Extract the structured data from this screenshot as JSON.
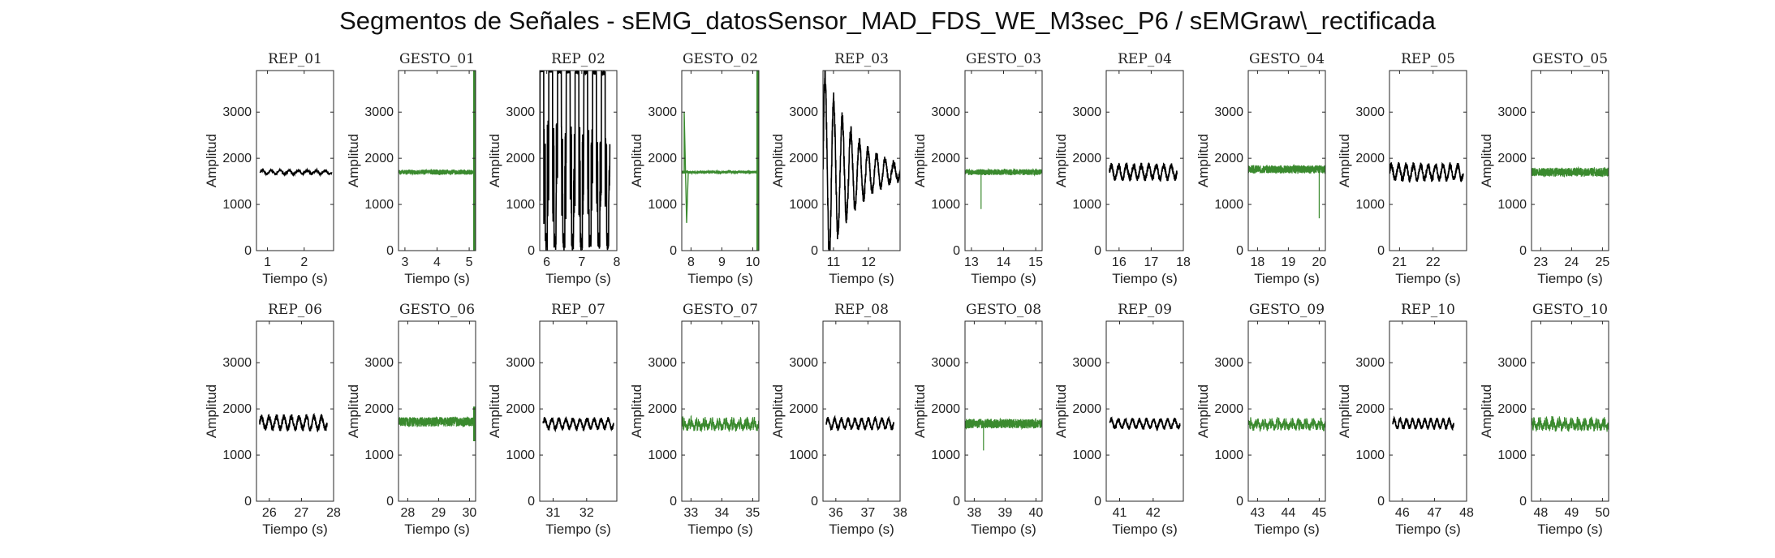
{
  "figure": {
    "title": "Segmentos de Señales - sEMG_datosSensor_MAD_FDS_WE_M3sec_P6 / sEMGraw\\_rectificada"
  },
  "colors": {
    "rep": "#000000",
    "gesto": "#3a8a2e",
    "axes": "#262626"
  },
  "chart_data": [
    {
      "type": "line",
      "title": "REP_01",
      "xlabel": "Tiempo (s)",
      "ylabel": "Amplitud",
      "xlim": [
        0.7,
        2.8
      ],
      "ylim": [
        0,
        3900
      ],
      "xticks": [
        1,
        2
      ],
      "yticks": [
        0,
        1000,
        2000,
        3000
      ],
      "series": [
        {
          "name": "REP_01",
          "color": "#000000",
          "x_range": [
            0.8,
            2.75
          ],
          "baseline": 1700,
          "amplitude": 40,
          "pattern": "oscillation",
          "cycles": 8
        }
      ]
    },
    {
      "type": "line",
      "title": "GESTO_01",
      "xlabel": "Tiempo (s)",
      "ylabel": "Amplitud",
      "xlim": [
        2.8,
        5.2
      ],
      "ylim": [
        0,
        3900
      ],
      "xticks": [
        3,
        4,
        5
      ],
      "yticks": [
        0,
        1000,
        2000,
        3000
      ],
      "series": [
        {
          "name": "GESTO_01",
          "color": "#3a8a2e",
          "x_range": [
            2.8,
            5.2
          ],
          "baseline": 1700,
          "amplitude": 70,
          "pattern": "noise",
          "end_burst": [
            0,
            3900
          ]
        }
      ]
    },
    {
      "type": "line",
      "title": "REP_02",
      "xlabel": "Tiempo (s)",
      "ylabel": "Amplitud",
      "xlim": [
        5.8,
        8.0
      ],
      "ylim": [
        0,
        3900
      ],
      "xticks": [
        6,
        7,
        8
      ],
      "yticks": [
        0,
        1000,
        2000,
        3000
      ],
      "series": [
        {
          "name": "REP_02",
          "color": "#000000",
          "x_range": [
            5.8,
            7.8
          ],
          "baseline": 1700,
          "pattern": "saturated_bursts",
          "cycles": 8,
          "max": 3900,
          "min": 0
        }
      ]
    },
    {
      "type": "line",
      "title": "GESTO_02",
      "xlabel": "Tiempo (s)",
      "ylabel": "Amplitud",
      "xlim": [
        7.7,
        10.2
      ],
      "ylim": [
        0,
        3900
      ],
      "xticks": [
        8,
        9,
        10
      ],
      "yticks": [
        0,
        1000,
        2000,
        3000
      ],
      "series": [
        {
          "name": "GESTO_02",
          "color": "#3a8a2e",
          "x_range": [
            7.7,
            10.2
          ],
          "baseline": 1700,
          "amplitude": 40,
          "pattern": "noise",
          "start_burst": [
            600,
            3000
          ],
          "end_burst": [
            0,
            3900
          ]
        }
      ]
    },
    {
      "type": "line",
      "title": "REP_03",
      "xlabel": "Tiempo (s)",
      "ylabel": "Amplitud",
      "xlim": [
        10.7,
        12.9
      ],
      "ylim": [
        0,
        3900
      ],
      "xticks": [
        11,
        12
      ],
      "yticks": [
        0,
        1000,
        2000,
        3000
      ],
      "series": [
        {
          "name": "REP_03",
          "color": "#000000",
          "x_range": [
            10.7,
            12.9
          ],
          "baseline": 1700,
          "pattern": "decaying_bursts",
          "cycles": 9,
          "max": 3900,
          "min": 0
        }
      ]
    },
    {
      "type": "line",
      "title": "GESTO_03",
      "xlabel": "Tiempo (s)",
      "ylabel": "Amplitud",
      "xlim": [
        12.8,
        15.2
      ],
      "ylim": [
        0,
        3900
      ],
      "xticks": [
        13,
        14,
        15
      ],
      "yticks": [
        0,
        1000,
        2000,
        3000
      ],
      "series": [
        {
          "name": "GESTO_03",
          "color": "#3a8a2e",
          "x_range": [
            12.8,
            15.2
          ],
          "baseline": 1700,
          "amplitude": 80,
          "pattern": "noise",
          "spike": [
            13.3,
            900
          ]
        }
      ]
    },
    {
      "type": "line",
      "title": "REP_04",
      "xlabel": "Tiempo (s)",
      "ylabel": "Amplitud",
      "xlim": [
        15.6,
        18.0
      ],
      "ylim": [
        0,
        3900
      ],
      "xticks": [
        16,
        17,
        18
      ],
      "yticks": [
        0,
        1000,
        2000,
        3000
      ],
      "series": [
        {
          "name": "REP_04",
          "color": "#000000",
          "x_range": [
            15.7,
            17.8
          ],
          "baseline": 1700,
          "amplitude": 140,
          "pattern": "oscillation",
          "cycles": 9
        }
      ]
    },
    {
      "type": "line",
      "title": "GESTO_04",
      "xlabel": "Tiempo (s)",
      "ylabel": "Amplitud",
      "xlim": [
        17.7,
        20.2
      ],
      "ylim": [
        0,
        3900
      ],
      "xticks": [
        18,
        19,
        20
      ],
      "yticks": [
        0,
        1000,
        2000,
        3000
      ],
      "series": [
        {
          "name": "GESTO_04",
          "color": "#3a8a2e",
          "x_range": [
            17.7,
            20.2
          ],
          "baseline": 1760,
          "amplitude": 110,
          "pattern": "noise",
          "spike": [
            20.0,
            700
          ]
        }
      ]
    },
    {
      "type": "line",
      "title": "REP_05",
      "xlabel": "Tiempo (s)",
      "ylabel": "Amplitud",
      "xlim": [
        20.7,
        23.0
      ],
      "ylim": [
        0,
        3900
      ],
      "xticks": [
        21,
        22
      ],
      "yticks": [
        0,
        1000,
        2000,
        3000
      ],
      "series": [
        {
          "name": "REP_05",
          "color": "#000000",
          "x_range": [
            20.7,
            22.9
          ],
          "baseline": 1700,
          "amplitude": 150,
          "pattern": "oscillation",
          "cycles": 10
        }
      ]
    },
    {
      "type": "line",
      "title": "GESTO_05",
      "xlabel": "Tiempo (s)",
      "ylabel": "Amplitud",
      "xlim": [
        22.7,
        25.2
      ],
      "ylim": [
        0,
        3900
      ],
      "xticks": [
        23,
        24,
        25
      ],
      "yticks": [
        0,
        1000,
        2000,
        3000
      ],
      "series": [
        {
          "name": "GESTO_05",
          "color": "#3a8a2e",
          "x_range": [
            22.7,
            25.2
          ],
          "baseline": 1700,
          "amplitude": 120,
          "pattern": "noise"
        }
      ]
    },
    {
      "type": "line",
      "title": "REP_06",
      "xlabel": "Tiempo (s)",
      "ylabel": "Amplitud",
      "xlim": [
        25.6,
        28.0
      ],
      "ylim": [
        0,
        3900
      ],
      "xticks": [
        26,
        27,
        28
      ],
      "yticks": [
        0,
        1000,
        2000,
        3000
      ],
      "series": [
        {
          "name": "REP_06",
          "color": "#000000",
          "x_range": [
            25.7,
            27.8
          ],
          "baseline": 1700,
          "amplitude": 130,
          "pattern": "oscillation",
          "cycles": 9
        }
      ]
    },
    {
      "type": "line",
      "title": "GESTO_06",
      "xlabel": "Tiempo (s)",
      "ylabel": "Amplitud",
      "xlim": [
        27.7,
        30.2
      ],
      "ylim": [
        0,
        3900
      ],
      "xticks": [
        28,
        29,
        30
      ],
      "yticks": [
        0,
        1000,
        2000,
        3000
      ],
      "series": [
        {
          "name": "GESTO_06",
          "color": "#3a8a2e",
          "x_range": [
            27.7,
            30.2
          ],
          "baseline": 1720,
          "amplitude": 130,
          "pattern": "noise",
          "end_burst": [
            1300,
            2050
          ]
        }
      ]
    },
    {
      "type": "line",
      "title": "REP_07",
      "xlabel": "Tiempo (s)",
      "ylabel": "Amplitud",
      "xlim": [
        30.6,
        32.9
      ],
      "ylim": [
        0,
        3900
      ],
      "xticks": [
        31,
        32
      ],
      "yticks": [
        0,
        1000,
        2000,
        3000
      ],
      "series": [
        {
          "name": "REP_07",
          "color": "#000000",
          "x_range": [
            30.7,
            32.8
          ],
          "baseline": 1680,
          "amplitude": 100,
          "pattern": "oscillation",
          "cycles": 10
        }
      ]
    },
    {
      "type": "line",
      "title": "GESTO_07",
      "xlabel": "Tiempo (s)",
      "ylabel": "Amplitud",
      "xlim": [
        32.7,
        35.2
      ],
      "ylim": [
        0,
        3900
      ],
      "xticks": [
        33,
        34,
        35
      ],
      "yticks": [
        0,
        1000,
        2000,
        3000
      ],
      "series": [
        {
          "name": "GESTO_07",
          "color": "#3a8a2e",
          "x_range": [
            32.7,
            35.2
          ],
          "baseline": 1680,
          "amplitude": 130,
          "pattern": "noisy_oscillation",
          "cycles": 11
        }
      ]
    },
    {
      "type": "line",
      "title": "REP_08",
      "xlabel": "Tiempo (s)",
      "ylabel": "Amplitud",
      "xlim": [
        35.6,
        38.0
      ],
      "ylim": [
        0,
        3900
      ],
      "xticks": [
        36,
        37,
        38
      ],
      "yticks": [
        0,
        1000,
        2000,
        3000
      ],
      "series": [
        {
          "name": "REP_08",
          "color": "#000000",
          "x_range": [
            35.7,
            37.8
          ],
          "baseline": 1680,
          "amplitude": 100,
          "pattern": "oscillation",
          "cycles": 10
        }
      ]
    },
    {
      "type": "line",
      "title": "GESTO_08",
      "xlabel": "Tiempo (s)",
      "ylabel": "Amplitud",
      "xlim": [
        37.7,
        40.2
      ],
      "ylim": [
        0,
        3900
      ],
      "xticks": [
        38,
        39,
        40
      ],
      "yticks": [
        0,
        1000,
        2000,
        3000
      ],
      "series": [
        {
          "name": "GESTO_08",
          "color": "#3a8a2e",
          "x_range": [
            37.7,
            40.2
          ],
          "baseline": 1680,
          "amplitude": 130,
          "pattern": "noise",
          "spike": [
            38.3,
            1100
          ]
        }
      ]
    },
    {
      "type": "line",
      "title": "REP_09",
      "xlabel": "Tiempo (s)",
      "ylabel": "Amplitud",
      "xlim": [
        40.6,
        42.9
      ],
      "ylim": [
        0,
        3900
      ],
      "xticks": [
        41,
        42
      ],
      "yticks": [
        0,
        1000,
        2000,
        3000
      ],
      "series": [
        {
          "name": "REP_09",
          "color": "#000000",
          "x_range": [
            40.7,
            42.8
          ],
          "baseline": 1680,
          "amplitude": 90,
          "pattern": "oscillation",
          "cycles": 10
        }
      ]
    },
    {
      "type": "line",
      "title": "GESTO_09",
      "xlabel": "Tiempo (s)",
      "ylabel": "Amplitud",
      "xlim": [
        42.7,
        45.2
      ],
      "ylim": [
        0,
        3900
      ],
      "xticks": [
        43,
        44,
        45
      ],
      "yticks": [
        0,
        1000,
        2000,
        3000
      ],
      "series": [
        {
          "name": "GESTO_09",
          "color": "#3a8a2e",
          "x_range": [
            42.7,
            45.2
          ],
          "baseline": 1680,
          "amplitude": 120,
          "pattern": "noisy_oscillation",
          "cycles": 11
        }
      ]
    },
    {
      "type": "line",
      "title": "REP_10",
      "xlabel": "Tiempo (s)",
      "ylabel": "Amplitud",
      "xlim": [
        45.6,
        48.0
      ],
      "ylim": [
        0,
        3900
      ],
      "xticks": [
        46,
        47,
        48
      ],
      "yticks": [
        0,
        1000,
        2000,
        3000
      ],
      "series": [
        {
          "name": "REP_10",
          "color": "#000000",
          "x_range": [
            45.7,
            47.6
          ],
          "baseline": 1680,
          "amplitude": 90,
          "pattern": "oscillation",
          "cycles": 10
        }
      ]
    },
    {
      "type": "line",
      "title": "GESTO_10",
      "xlabel": "Tiempo (s)",
      "ylabel": "Amplitud",
      "xlim": [
        47.7,
        50.2
      ],
      "ylim": [
        0,
        3900
      ],
      "xticks": [
        48,
        49,
        50
      ],
      "yticks": [
        0,
        1000,
        2000,
        3000
      ],
      "series": [
        {
          "name": "GESTO_10",
          "color": "#3a8a2e",
          "x_range": [
            47.7,
            50.2
          ],
          "baseline": 1680,
          "amplitude": 130,
          "pattern": "noisy_oscillation",
          "cycles": 12
        }
      ]
    }
  ]
}
